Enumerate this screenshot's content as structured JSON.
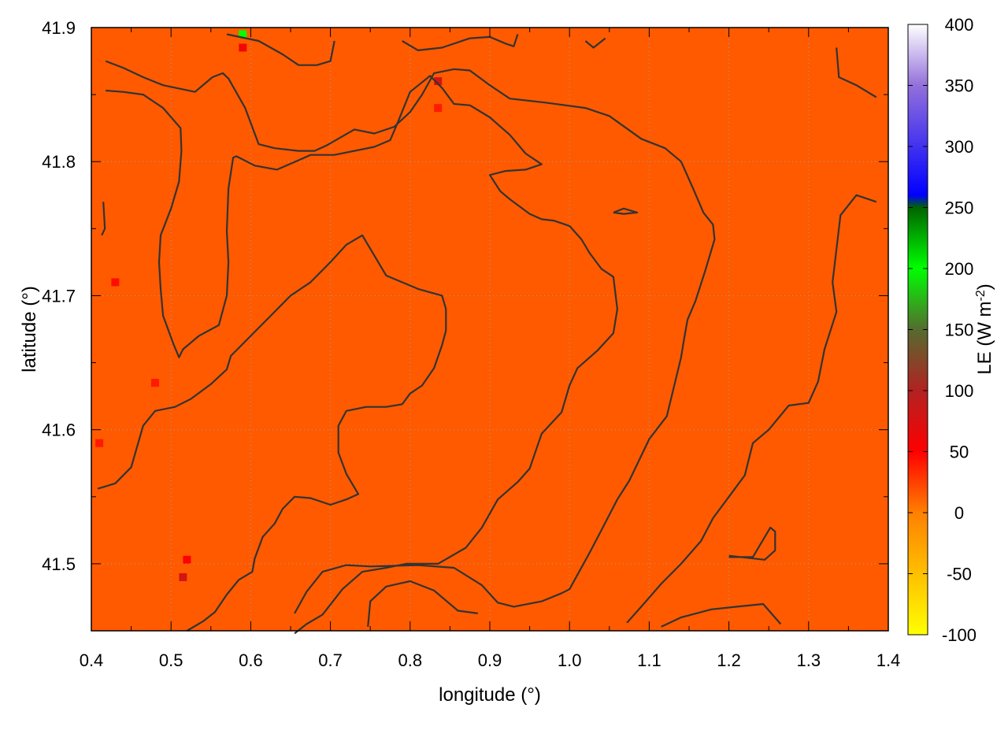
{
  "chart_data": {
    "type": "heatmap",
    "xlabel": "longitude (°)",
    "ylabel": "latitude (°)",
    "colorbar_label": "LE (W m",
    "colorbar_label_sup": "-2",
    "colorbar_label_close": ")",
    "xlim": [
      0.4,
      1.4
    ],
    "ylim": [
      41.45,
      41.9
    ],
    "clim": [
      -100,
      400
    ],
    "x_ticks": [
      "0.4",
      "0.5",
      "0.6",
      "0.7",
      "0.8",
      "0.9",
      "1.0",
      "1.1",
      "1.2",
      "1.3",
      "1.4"
    ],
    "x_tick_values": [
      0.4,
      0.5,
      0.6,
      0.7,
      0.8,
      0.9,
      1.0,
      1.1,
      1.2,
      1.3,
      1.4
    ],
    "y_ticks": [
      "41.5",
      "41.6",
      "41.7",
      "41.8",
      "41.9"
    ],
    "y_tick_values": [
      41.5,
      41.6,
      41.7,
      41.8,
      41.9
    ],
    "colorbar_ticks": [
      "-100",
      "-50",
      "0",
      "50",
      "100",
      "150",
      "200",
      "250",
      "300",
      "350",
      "400"
    ],
    "colorbar_tick_values": [
      -100,
      -50,
      0,
      50,
      100,
      150,
      200,
      250,
      300,
      350,
      400
    ],
    "colormap": [
      {
        "value": -100,
        "color": "#ffff00"
      },
      {
        "value": 0,
        "color": "#ff8000"
      },
      {
        "value": 50,
        "color": "#ff0000"
      },
      {
        "value": 100,
        "color": "#b22222"
      },
      {
        "value": 150,
        "color": "#556b2f"
      },
      {
        "value": 200,
        "color": "#00ff00"
      },
      {
        "value": 250,
        "color": "#006400"
      },
      {
        "value": 260,
        "color": "#0000ff"
      },
      {
        "value": 350,
        "color": "#9370db"
      },
      {
        "value": 400,
        "color": "#ffffff"
      }
    ],
    "background_value": 15,
    "grid": true,
    "anomalies": [
      {
        "lon": 0.59,
        "lat": 41.885,
        "value": 60
      },
      {
        "lon": 0.59,
        "lat": 41.895,
        "value": 200
      },
      {
        "lon": 0.835,
        "lat": 41.86,
        "value": 80
      },
      {
        "lon": 0.835,
        "lat": 41.84,
        "value": 40
      },
      {
        "lon": 0.515,
        "lat": 41.49,
        "value": 80
      },
      {
        "lon": 0.52,
        "lat": 41.503,
        "value": 50
      },
      {
        "lon": 0.41,
        "lat": 41.59,
        "value": 40
      },
      {
        "lon": 0.43,
        "lat": 41.71,
        "value": 45
      },
      {
        "lon": 0.48,
        "lat": 41.635,
        "value": 40
      }
    ],
    "contours": [
      [
        [
          0.418,
          41.875
        ],
        [
          0.44,
          41.87
        ],
        [
          0.465,
          41.863
        ],
        [
          0.49,
          41.857
        ],
        [
          0.53,
          41.852
        ],
        [
          0.552,
          41.863
        ],
        [
          0.565,
          41.866
        ],
        [
          0.572,
          41.862
        ],
        [
          0.593,
          41.84
        ],
        [
          0.61,
          41.813
        ],
        [
          0.63,
          41.81
        ],
        [
          0.66,
          41.808
        ],
        [
          0.68,
          41.808
        ],
        [
          0.695,
          41.812
        ],
        [
          0.73,
          41.824
        ],
        [
          0.755,
          41.821
        ],
        [
          0.78,
          41.826
        ],
        [
          0.8,
          41.837
        ],
        [
          0.815,
          41.85
        ],
        [
          0.83,
          41.866
        ],
        [
          0.855,
          41.869
        ],
        [
          0.875,
          41.868
        ],
        [
          0.9,
          41.857
        ],
        [
          0.925,
          41.847
        ],
        [
          0.97,
          41.844
        ],
        [
          1.02,
          41.84
        ],
        [
          1.05,
          41.834
        ],
        [
          1.09,
          41.817
        ],
        [
          1.12,
          41.81
        ],
        [
          1.14,
          41.8
        ],
        [
          1.155,
          41.78
        ],
        [
          1.168,
          41.762
        ],
        [
          1.18,
          41.753
        ],
        [
          1.182,
          41.742
        ],
        [
          1.17,
          41.718
        ],
        [
          1.158,
          41.696
        ],
        [
          1.148,
          41.682
        ],
        [
          1.143,
          41.665
        ],
        [
          1.14,
          41.654
        ],
        [
          1.122,
          41.61
        ],
        [
          1.1,
          41.593
        ],
        [
          1.075,
          41.562
        ],
        [
          1.06,
          41.548
        ],
        [
          1.04,
          41.525
        ],
        [
          1.025,
          41.508
        ],
        [
          1.0,
          41.481
        ],
        [
          0.99,
          41.478
        ],
        [
          0.965,
          41.472
        ],
        [
          0.93,
          41.468
        ],
        [
          0.91,
          41.471
        ],
        [
          0.89,
          41.484
        ],
        [
          0.855,
          41.497
        ],
        [
          0.81,
          41.499
        ],
        [
          0.75,
          41.498
        ],
        [
          0.72,
          41.499
        ],
        [
          0.69,
          41.494
        ],
        [
          0.67,
          41.479
        ],
        [
          0.655,
          41.463
        ]
      ],
      [
        [
          0.418,
          41.853
        ],
        [
          0.44,
          41.852
        ],
        [
          0.465,
          41.85
        ],
        [
          0.49,
          41.84
        ],
        [
          0.512,
          41.825
        ],
        [
          0.513,
          41.808
        ],
        [
          0.51,
          41.785
        ],
        [
          0.5,
          41.765
        ],
        [
          0.487,
          41.745
        ],
        [
          0.485,
          41.725
        ],
        [
          0.487,
          41.705
        ],
        [
          0.49,
          41.685
        ],
        [
          0.503,
          41.664
        ],
        [
          0.51,
          41.654
        ],
        [
          0.515,
          41.66
        ],
        [
          0.535,
          41.67
        ],
        [
          0.56,
          41.678
        ],
        [
          0.57,
          41.7
        ],
        [
          0.572,
          41.725
        ],
        [
          0.57,
          41.748
        ],
        [
          0.572,
          41.78
        ],
        [
          0.578,
          41.803
        ],
        [
          0.582,
          41.804
        ],
        [
          0.605,
          41.797
        ],
        [
          0.633,
          41.794
        ],
        [
          0.66,
          41.801
        ],
        [
          0.675,
          41.805
        ],
        [
          0.705,
          41.805
        ],
        [
          0.755,
          41.811
        ],
        [
          0.775,
          41.816
        ],
        [
          0.785,
          41.83
        ],
        [
          0.8,
          41.852
        ],
        [
          0.825,
          41.864
        ],
        [
          0.84,
          41.855
        ],
        [
          0.855,
          41.843
        ],
        [
          0.875,
          41.842
        ],
        [
          0.9,
          41.833
        ],
        [
          0.925,
          41.82
        ],
        [
          0.945,
          41.806
        ],
        [
          0.965,
          41.798
        ],
        [
          0.945,
          41.794
        ],
        [
          0.92,
          41.793
        ],
        [
          0.9,
          41.79
        ],
        [
          0.913,
          41.778
        ],
        [
          0.925,
          41.772
        ],
        [
          0.95,
          41.761
        ],
        [
          0.965,
          41.757
        ],
        [
          0.98,
          41.756
        ],
        [
          1.0,
          41.752
        ],
        [
          1.015,
          41.742
        ],
        [
          1.025,
          41.732
        ],
        [
          1.04,
          41.72
        ],
        [
          1.055,
          41.714
        ],
        [
          1.06,
          41.69
        ],
        [
          1.055,
          41.672
        ],
        [
          1.035,
          41.659
        ],
        [
          1.01,
          41.646
        ],
        [
          1.0,
          41.633
        ],
        [
          0.99,
          41.613
        ],
        [
          0.965,
          41.597
        ],
        [
          0.95,
          41.571
        ],
        [
          0.935,
          41.561
        ],
        [
          0.91,
          41.548
        ],
        [
          0.89,
          41.527
        ],
        [
          0.87,
          41.512
        ],
        [
          0.835,
          41.5
        ],
        [
          0.795,
          41.5
        ],
        [
          0.77,
          41.497
        ],
        [
          0.74,
          41.494
        ],
        [
          0.715,
          41.481
        ],
        [
          0.69,
          41.462
        ],
        [
          0.67,
          41.455
        ],
        [
          0.655,
          41.448
        ]
      ],
      [
        [
          0.408,
          41.556
        ],
        [
          0.43,
          41.56
        ],
        [
          0.45,
          41.572
        ],
        [
          0.465,
          41.603
        ],
        [
          0.48,
          41.614
        ],
        [
          0.505,
          41.617
        ],
        [
          0.525,
          41.623
        ],
        [
          0.55,
          41.634
        ],
        [
          0.57,
          41.645
        ],
        [
          0.575,
          41.655
        ],
        [
          0.6,
          41.67
        ],
        [
          0.625,
          41.685
        ],
        [
          0.65,
          41.7
        ],
        [
          0.675,
          41.71
        ],
        [
          0.7,
          41.725
        ],
        [
          0.72,
          41.738
        ],
        [
          0.74,
          41.745
        ],
        [
          0.755,
          41.73
        ],
        [
          0.77,
          41.715
        ],
        [
          0.79,
          41.71
        ],
        [
          0.81,
          41.705
        ],
        [
          0.84,
          41.7
        ],
        [
          0.845,
          41.69
        ],
        [
          0.845,
          41.674
        ],
        [
          0.84,
          41.663
        ],
        [
          0.83,
          41.646
        ],
        [
          0.815,
          41.633
        ],
        [
          0.8,
          41.627
        ],
        [
          0.79,
          41.619
        ],
        [
          0.77,
          41.617
        ],
        [
          0.745,
          41.617
        ],
        [
          0.72,
          41.614
        ],
        [
          0.71,
          41.603
        ],
        [
          0.71,
          41.583
        ],
        [
          0.72,
          41.567
        ],
        [
          0.735,
          41.552
        ],
        [
          0.72,
          41.548
        ],
        [
          0.7,
          41.544
        ],
        [
          0.675,
          41.549
        ],
        [
          0.655,
          41.55
        ],
        [
          0.64,
          41.541
        ],
        [
          0.63,
          41.53
        ],
        [
          0.615,
          41.52
        ],
        [
          0.605,
          41.504
        ],
        [
          0.602,
          41.494
        ],
        [
          0.585,
          41.488
        ],
        [
          0.57,
          41.477
        ],
        [
          0.555,
          41.464
        ],
        [
          0.54,
          41.457
        ],
        [
          0.52,
          41.45
        ]
      ],
      [
        [
          0.57,
          41.895
        ],
        [
          0.61,
          41.89
        ],
        [
          0.64,
          41.88
        ],
        [
          0.66,
          41.872
        ],
        [
          0.683,
          41.872
        ],
        [
          0.7,
          41.875
        ],
        [
          0.705,
          41.89
        ]
      ],
      [
        [
          0.79,
          41.89
        ],
        [
          0.81,
          41.883
        ],
        [
          0.84,
          41.885
        ],
        [
          0.875,
          41.892
        ],
        [
          0.9,
          41.893
        ]
      ],
      [
        [
          0.9,
          41.893
        ],
        [
          0.92,
          41.888
        ],
        [
          0.93,
          41.886
        ],
        [
          0.935,
          41.895
        ]
      ],
      [
        [
          1.02,
          41.89
        ],
        [
          1.03,
          41.885
        ],
        [
          1.045,
          41.892
        ]
      ],
      [
        [
          1.335,
          41.885
        ],
        [
          1.338,
          41.863
        ],
        [
          1.36,
          41.857
        ],
        [
          1.385,
          41.848
        ]
      ],
      [
        [
          0.415,
          41.77
        ],
        [
          0.417,
          41.75
        ],
        [
          0.413,
          41.745
        ]
      ],
      [
        [
          1.055,
          41.762
        ],
        [
          1.068,
          41.765
        ],
        [
          1.085,
          41.762
        ],
        [
          1.068,
          41.761
        ],
        [
          1.055,
          41.762
        ]
      ],
      [
        [
          1.385,
          41.77
        ],
        [
          1.36,
          41.775
        ],
        [
          1.34,
          41.76
        ],
        [
          1.33,
          41.71
        ],
        [
          1.335,
          41.688
        ],
        [
          1.32,
          41.66
        ],
        [
          1.312,
          41.636
        ],
        [
          1.3,
          41.62
        ],
        [
          1.275,
          41.618
        ],
        [
          1.25,
          41.6
        ],
        [
          1.23,
          41.59
        ],
        [
          1.22,
          41.566
        ],
        [
          1.2,
          41.55
        ],
        [
          1.18,
          41.534
        ],
        [
          1.165,
          41.517
        ],
        [
          1.14,
          41.5
        ],
        [
          1.115,
          41.485
        ],
        [
          1.09,
          41.468
        ],
        [
          1.072,
          41.456
        ]
      ],
      [
        [
          1.2,
          41.505
        ],
        [
          1.23,
          41.505
        ],
        [
          1.252,
          41.527
        ],
        [
          1.258,
          41.524
        ],
        [
          1.258,
          41.51
        ],
        [
          1.245,
          41.503
        ],
        [
          1.2,
          41.506
        ]
      ],
      [
        [
          1.115,
          41.453
        ],
        [
          1.14,
          41.46
        ],
        [
          1.178,
          41.466
        ],
        [
          1.21,
          41.468
        ],
        [
          1.243,
          41.47
        ],
        [
          1.265,
          41.455
        ]
      ],
      [
        [
          0.747,
          41.453
        ],
        [
          0.75,
          41.472
        ],
        [
          0.77,
          41.483
        ],
        [
          0.8,
          41.487
        ],
        [
          0.83,
          41.48
        ],
        [
          0.86,
          41.465
        ],
        [
          0.885,
          41.463
        ]
      ]
    ]
  }
}
